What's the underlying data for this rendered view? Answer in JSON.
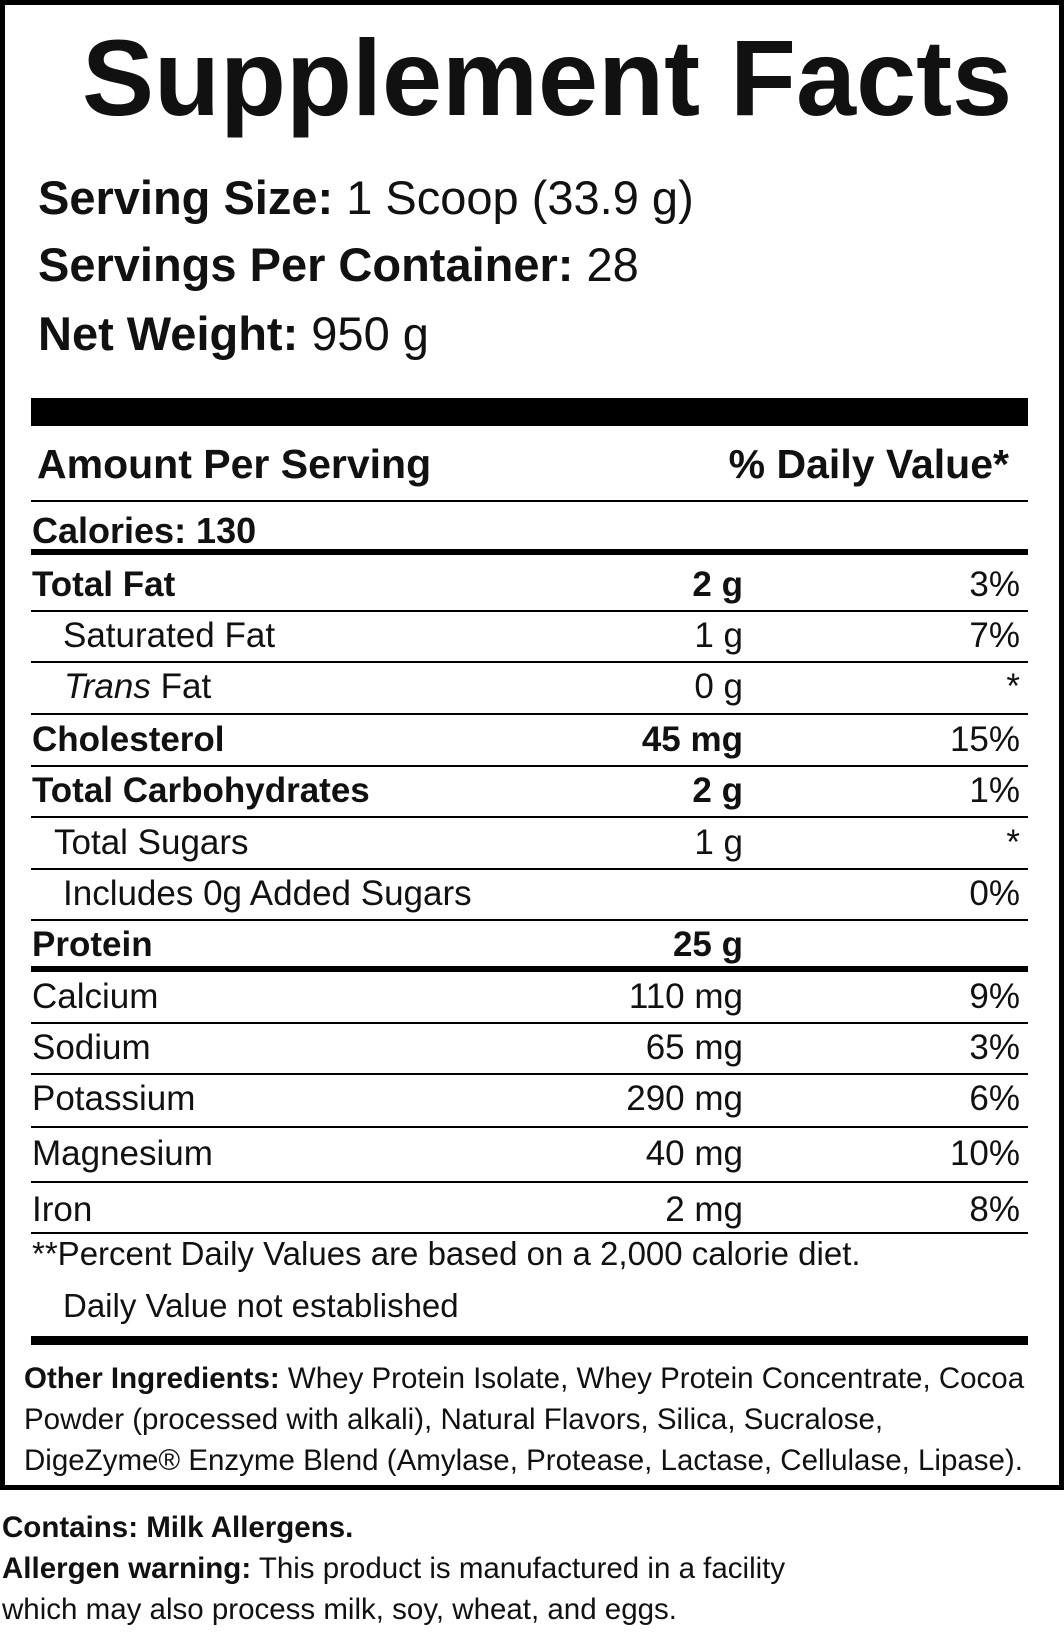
{
  "title": "Supplement Facts",
  "serving_info": [
    {
      "label": "Serving Size:",
      "value": "1 Scoop (33.9 g)"
    },
    {
      "label": "Servings Per Container:",
      "value": "28"
    },
    {
      "label": "Net Weight:",
      "value": "950 g"
    }
  ],
  "header": {
    "amount": "Amount Per Serving",
    "daily_value": "% Daily Value*"
  },
  "calories": "Calories: 130",
  "rows": [
    {
      "name": "Total Fat",
      "amount": "2 g",
      "dv": "3%",
      "bold": true
    },
    {
      "name": "Saturated Fat",
      "amount": "1 g",
      "dv": "7%",
      "indent": true
    },
    {
      "prefix": "Trans",
      "name": "Fat",
      "amount": "0 g",
      "dv": "*",
      "indent": true
    },
    {
      "name": "Cholesterol",
      "amount": "45 mg",
      "dv": "15%",
      "bold": true
    },
    {
      "name": "Total Carbohydrates",
      "amount": "2 g",
      "dv": "1%",
      "bold": true
    },
    {
      "name": "Total Sugars",
      "amount": "1 g",
      "dv": "*",
      "indent": true
    },
    {
      "name": "Includes 0g Added Sugars",
      "dv": "0%",
      "indent": true
    },
    {
      "name": "Protein",
      "amount": "25 g",
      "bold": true
    },
    {
      "name": "Calcium",
      "amount": "110 mg",
      "dv": "9%"
    },
    {
      "name": "Sodium",
      "amount": "65 mg",
      "dv": "3%"
    },
    {
      "name": "Potassium",
      "amount": "290 mg",
      "dv": "6%"
    },
    {
      "name": "Magnesium",
      "amount": "40 mg",
      "dv": "10%"
    },
    {
      "name": "Iron",
      "amount": "2 mg",
      "dv": "8%"
    }
  ],
  "footnotes": [
    "**Percent Daily Values are based on a 2,000 calorie diet.",
    "Daily Value not established"
  ],
  "other_ingredients": {
    "label": "Other Ingredients:",
    "text": "Whey Protein Isolate, Whey Protein Concentrate, Cocoa Powder (processed with alkali), Natural Flavors, Silica, Sucralose, DigeZyme® Enzyme Blend (Amylase, Protease, Lactase, Cellulase, Lipase)."
  },
  "contains": "Contains: Milk Allergens.",
  "allergen_warning": {
    "label": "Allergen warning:",
    "text": "This product is manufactured in a facility which may also process milk, soy, wheat, and eggs."
  }
}
